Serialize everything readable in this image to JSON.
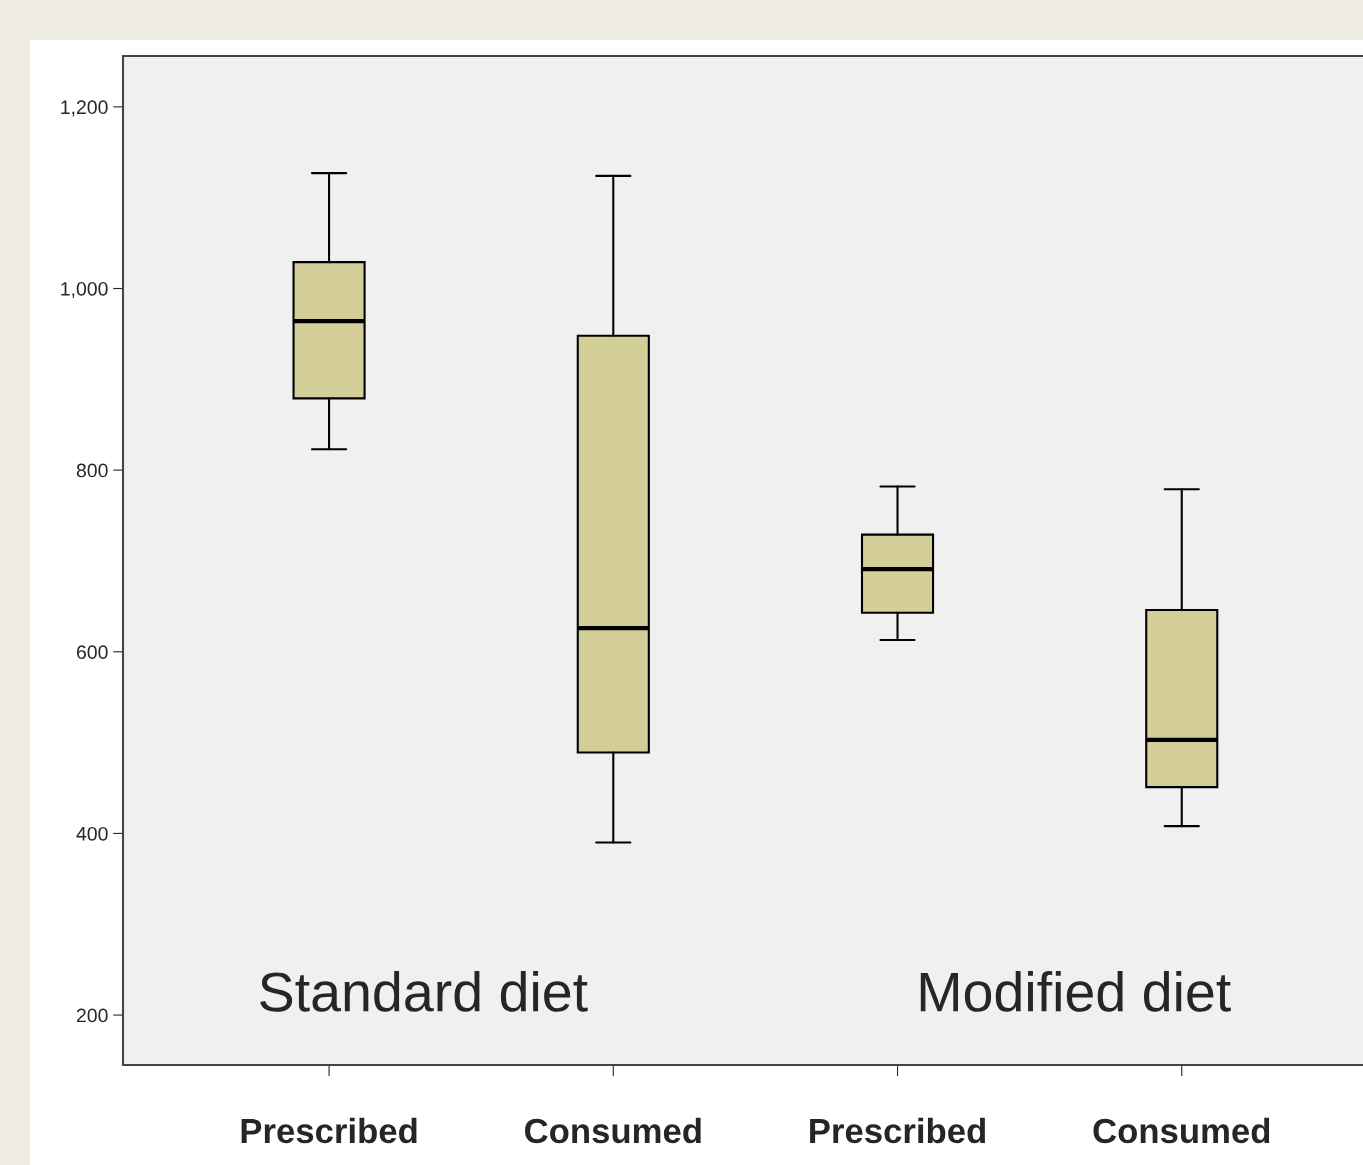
{
  "chart_data": {
    "type": "box",
    "categories": [
      "Prescribed",
      "Consumed",
      "Prescribed",
      "Consumed"
    ],
    "boxes": [
      {
        "low": 823,
        "q1": 879,
        "median": 964,
        "q3": 1029,
        "high": 1127
      },
      {
        "low": 390,
        "q1": 489,
        "median": 626,
        "q3": 948,
        "high": 1124
      },
      {
        "low": 613,
        "q1": 643,
        "median": 691,
        "q3": 729,
        "high": 782
      },
      {
        "low": 408,
        "q1": 451,
        "median": 503,
        "q3": 646,
        "high": 779
      }
    ],
    "color": "#d3ce97",
    "ylim": [
      145,
      1256
    ],
    "yticks": [
      {
        "value": 200,
        "label": "200"
      },
      {
        "value": 400,
        "label": "400"
      },
      {
        "value": 600,
        "label": "600"
      },
      {
        "value": 800,
        "label": "800"
      },
      {
        "value": 1000,
        "label": "1,000"
      },
      {
        "value": 1200,
        "label": "1,200"
      }
    ],
    "annotations": [
      "Standard diet",
      "Modified diet"
    ],
    "grid": false
  }
}
